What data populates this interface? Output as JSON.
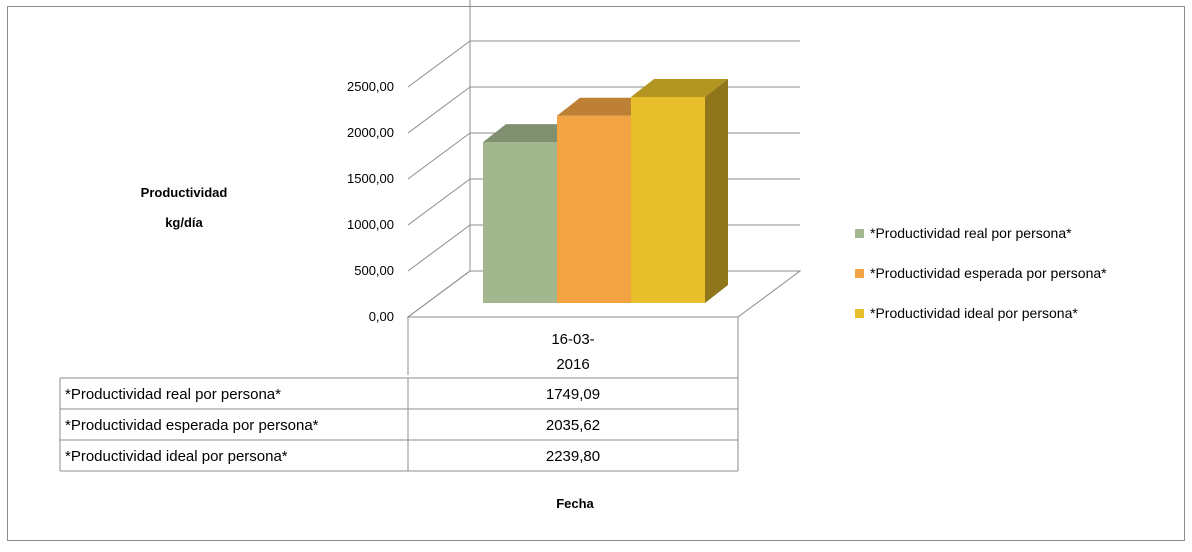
{
  "chart_data": {
    "type": "bar",
    "title": "",
    "ylabel": "Productividad kg/día",
    "ylabel_lines": [
      "Productividad",
      "kg/día"
    ],
    "xlabel": "Fecha",
    "categories": [
      "16-03-2016"
    ],
    "category_lines": [
      "16-03-",
      "2016"
    ],
    "ylim": [
      0,
      2500
    ],
    "yticks": [
      0,
      500,
      1000,
      1500,
      2000,
      2500
    ],
    "ytick_labels": [
      "0,00",
      "500,00",
      "1000,00",
      "1500,00",
      "2000,00",
      "2500,00"
    ],
    "grid": true,
    "legend_position": "right",
    "three_d": true,
    "data_table": true,
    "series": [
      {
        "name": "*Productividad real por persona*",
        "values": [
          1749.09
        ],
        "value_labels": [
          "1749,09"
        ],
        "color": "#a3b78f"
      },
      {
        "name": "*Productividad esperada por persona*",
        "values": [
          2035.62
        ],
        "value_labels": [
          "2035,62"
        ],
        "color": "#f2a444"
      },
      {
        "name": "*Productividad ideal por persona*",
        "values": [
          2239.8
        ],
        "value_labels": [
          "2239,80"
        ],
        "color": "#e6bf2a"
      }
    ]
  }
}
